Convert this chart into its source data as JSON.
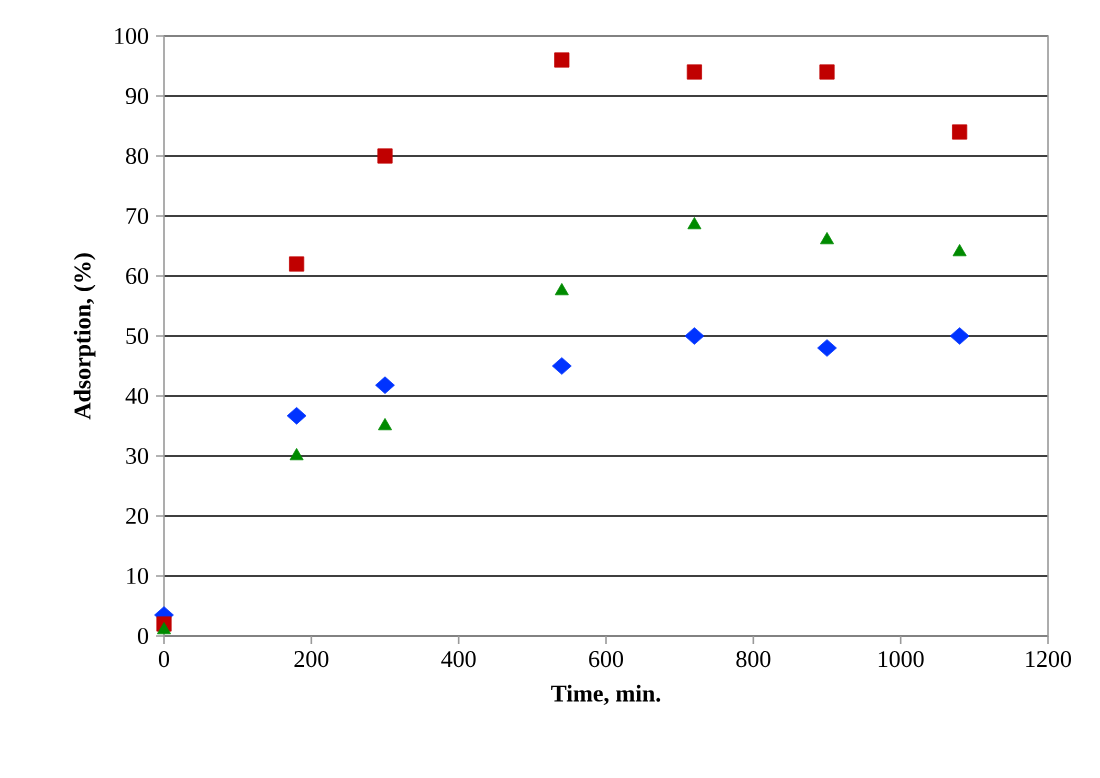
{
  "chart_data": {
    "type": "scatter",
    "xlabel": "Time, min.",
    "ylabel": "Adsorption, (%)",
    "xlim": [
      0,
      1200
    ],
    "xticks": [
      0,
      200,
      400,
      600,
      800,
      1000,
      1200
    ],
    "ylim": [
      0,
      100
    ],
    "yticks": [
      0,
      10,
      20,
      30,
      40,
      50,
      60,
      70,
      80,
      90,
      100
    ],
    "grid": "y",
    "series": [
      {
        "color": "#0033ff",
        "marker": "diamond",
        "x": [
          0,
          180,
          300,
          540,
          720,
          900,
          1080
        ],
        "values": [
          3.5,
          36.7,
          41.8,
          45,
          50,
          48,
          50
        ]
      },
      {
        "color": "#c00000",
        "marker": "square",
        "x": [
          0,
          180,
          300,
          540,
          720,
          900,
          1080
        ],
        "values": [
          2,
          62,
          80,
          96,
          94,
          94,
          84
        ]
      },
      {
        "color": "#008a00",
        "marker": "triangle",
        "x": [
          0,
          180,
          300,
          540,
          720,
          900,
          1080
        ],
        "values": [
          1,
          30,
          35,
          57.5,
          68.5,
          66,
          64
        ]
      }
    ]
  }
}
